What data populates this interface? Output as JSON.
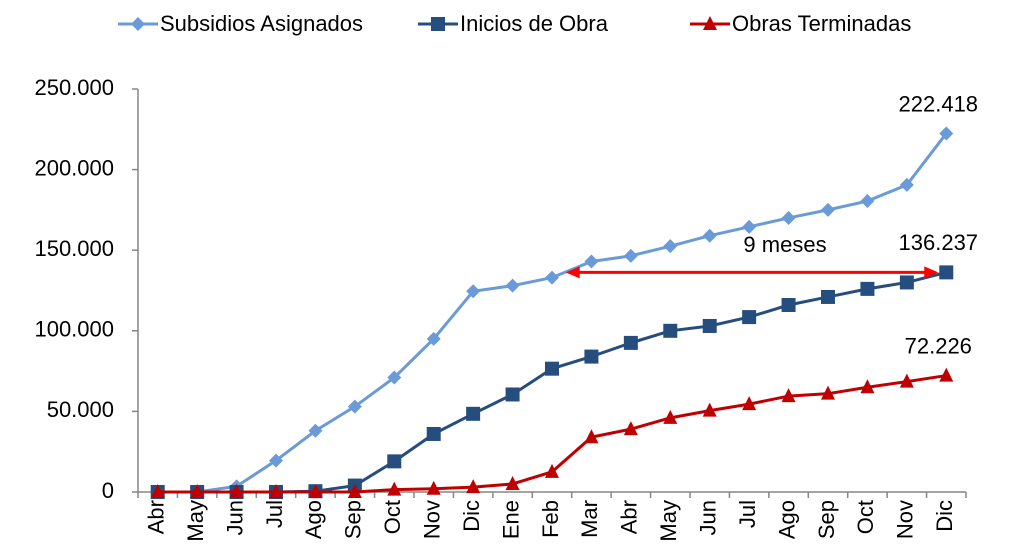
{
  "chart_data": {
    "type": "line",
    "categories": [
      "Abr",
      "May",
      "Jun",
      "Jul",
      "Ago",
      "Sep",
      "Oct",
      "Nov",
      "Dic",
      "Ene",
      "Feb",
      "Mar",
      "Abr",
      "May",
      "Jun",
      "Jul",
      "Ago",
      "Sep",
      "Oct",
      "Nov",
      "Dic"
    ],
    "series": [
      {
        "name": "Subsidios Asignados",
        "color": "#6a9bd8",
        "marker": "diamond",
        "values": [
          0,
          0,
          3500,
          19500,
          38000,
          53000,
          71000,
          95000,
          124500,
          128000,
          133000,
          143000,
          146500,
          152500,
          159000,
          164500,
          170000,
          175000,
          180500,
          190500,
          222418
        ],
        "value_labels": [
          null,
          null,
          null,
          null,
          null,
          null,
          null,
          null,
          null,
          null,
          null,
          null,
          null,
          null,
          null,
          null,
          null,
          null,
          null,
          null,
          "222.418"
        ]
      },
      {
        "name": "Inicios de Obra",
        "color": "#254e7e",
        "marker": "square",
        "values": [
          0,
          0,
          0,
          0,
          500,
          4000,
          19000,
          36000,
          48500,
          60500,
          76500,
          84000,
          92500,
          100000,
          103000,
          108500,
          116000,
          121000,
          126000,
          130000,
          136237
        ],
        "value_labels": [
          null,
          null,
          null,
          null,
          null,
          null,
          null,
          null,
          null,
          null,
          null,
          null,
          null,
          null,
          null,
          null,
          null,
          null,
          null,
          null,
          "136.237"
        ]
      },
      {
        "name": "Obras Terminadas",
        "color": "#c00000",
        "marker": "triangle",
        "values": [
          0,
          0,
          0,
          0,
          0,
          0,
          1500,
          2000,
          3000,
          5000,
          12500,
          34000,
          39000,
          46000,
          50500,
          54500,
          59500,
          61000,
          65000,
          68500,
          72226
        ],
        "value_labels": [
          null,
          null,
          null,
          null,
          null,
          null,
          null,
          null,
          null,
          null,
          null,
          null,
          null,
          null,
          null,
          null,
          null,
          null,
          null,
          null,
          "72.226"
        ]
      }
    ],
    "ylim": [
      0,
      250000
    ],
    "yticks": [
      0,
      {
        "value": 50000,
        "label": "50.000"
      },
      {
        "value": 100000,
        "label": "100.000"
      },
      {
        "value": 150000,
        "label": "150.000"
      },
      {
        "value": 200000,
        "label": "200.000"
      },
      {
        "value": 250000,
        "label": "250.000"
      }
    ],
    "annotation": {
      "text": "9 meses",
      "color": "#ff0000"
    },
    "legend": "top",
    "grid": false
  }
}
